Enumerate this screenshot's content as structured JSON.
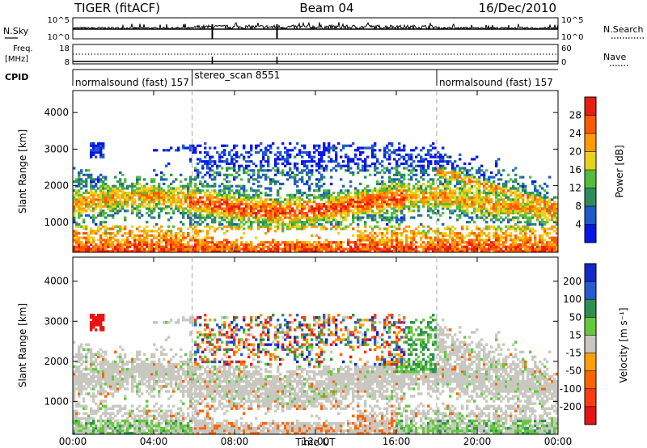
{
  "header": {
    "title": "TIGER (fitACF)",
    "beam": "Beam 04",
    "date": "16/Dec/2010"
  },
  "top_panels": {
    "nsky_label": "N.Sky",
    "nsky_ticks": [
      "10^5",
      "10^0"
    ],
    "nsearch_label": "N.Search",
    "freq_label_line1": "Freq.",
    "freq_label_line2": "[MHz]",
    "freq_ticks": [
      "18",
      "8"
    ],
    "nave_label": "Nave",
    "nave_ticks": [
      "60",
      "0"
    ],
    "cpid_label": "CPID",
    "cpid_segments": [
      {
        "name": "normalsound (fast) 157",
        "start_hour": 0
      },
      {
        "name": "stereo_scan 8551",
        "start_hour": 5.9
      },
      {
        "name": "normalsound (fast) 157",
        "start_hour": 18.0
      }
    ]
  },
  "chart_data": [
    {
      "type": "heatmap",
      "title": "",
      "quantity": "Power",
      "xlabel": "",
      "ylabel": "Slant Range [km]",
      "xlim_hours": [
        0,
        24
      ],
      "x_ticks": [
        "00:00",
        "04:00",
        "08:00",
        "12:00",
        "16:00",
        "20:00",
        "00:00"
      ],
      "ylim": [
        180,
        4600
      ],
      "y_ticks": [
        1000,
        2000,
        3000,
        4000
      ],
      "colorbar": {
        "label": "Power [dB]",
        "ticks": [
          4,
          8,
          12,
          16,
          20,
          24,
          28
        ],
        "colors": [
          "#0a16e8",
          "#1e5ac8",
          "#2e8c5c",
          "#52be3c",
          "#e8d21e",
          "#ff9a00",
          "#ff5a00",
          "#e81e10"
        ]
      },
      "mode_change_hours": [
        5.9,
        18.0
      ]
    },
    {
      "type": "heatmap",
      "title": "",
      "quantity": "Velocity",
      "xlabel": "Time UT",
      "ylabel": "Slant Range [km]",
      "xlim_hours": [
        0,
        24
      ],
      "x_ticks": [
        "00:00",
        "04:00",
        "08:00",
        "12:00",
        "16:00",
        "20:00",
        "00:00"
      ],
      "ylim": [
        180,
        4600
      ],
      "y_ticks": [
        1000,
        2000,
        3000,
        4000
      ],
      "colorbar": {
        "label": "Velocity [m s⁻¹]",
        "ticks": [
          200,
          100,
          50,
          15,
          -15,
          -50,
          -100,
          -200
        ],
        "colors": [
          "#1428c8",
          "#285ad2",
          "#2e9050",
          "#64c83c",
          "#c8c8c0",
          "#ffa000",
          "#ff6400",
          "#ff3c14",
          "#e81414"
        ]
      },
      "mode_change_hours": [
        5.9,
        18.0
      ]
    }
  ]
}
